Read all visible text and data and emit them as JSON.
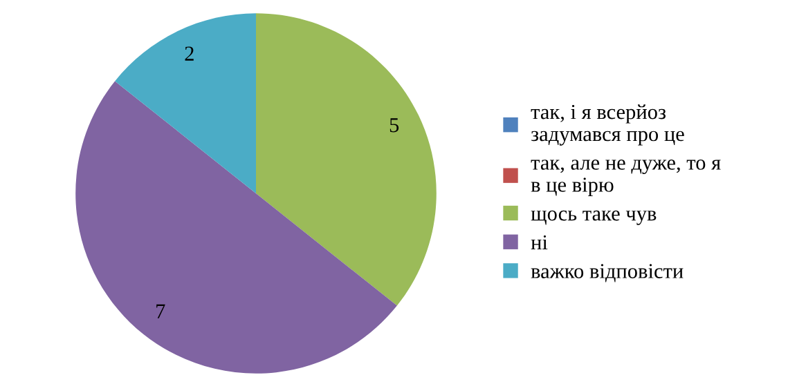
{
  "chart_data": {
    "type": "pie",
    "categories": [
      "так, і я всерйоз\nзадумався про це",
      "так, але не дуже, то я\nв це вірю",
      "щось таке чув",
      "ні",
      "важко відповісти"
    ],
    "values": [
      0,
      0,
      5,
      7,
      2
    ],
    "colors": [
      "#4f81bd",
      "#c0504d",
      "#9bbb59",
      "#8064a2",
      "#4bacc6"
    ],
    "value_labels": [
      null,
      null,
      "5",
      "7",
      "2"
    ],
    "legend": "right"
  }
}
